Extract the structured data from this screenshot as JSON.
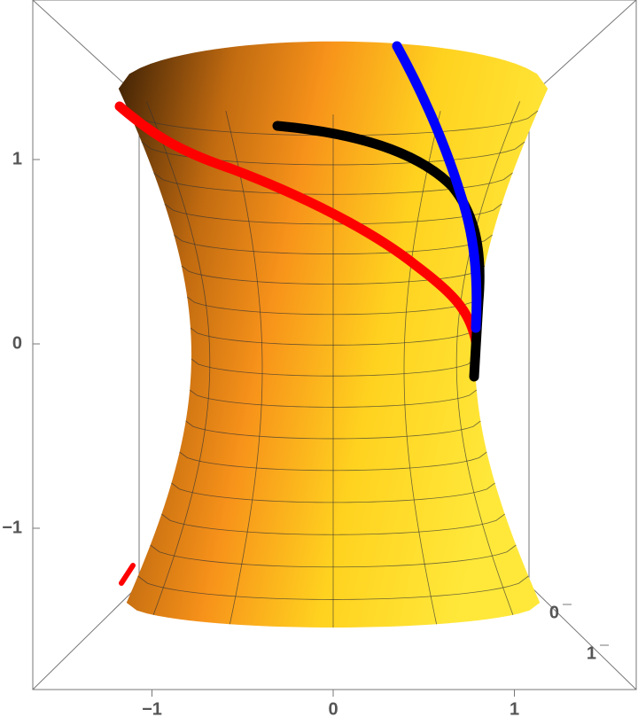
{
  "axes": {
    "horizontal": {
      "ticks": [
        {
          "value": -1,
          "label": "−1"
        },
        {
          "value": 0,
          "label": "0"
        },
        {
          "value": 1,
          "label": "1"
        }
      ]
    },
    "vertical": {
      "ticks": [
        {
          "value": -1,
          "label": "−1"
        },
        {
          "value": 0,
          "label": "0"
        },
        {
          "value": 1,
          "label": "1"
        }
      ]
    },
    "depth": {
      "ticks": [
        {
          "value": 0,
          "label": "0"
        },
        {
          "value": 1,
          "label": "1"
        }
      ]
    }
  }
}
